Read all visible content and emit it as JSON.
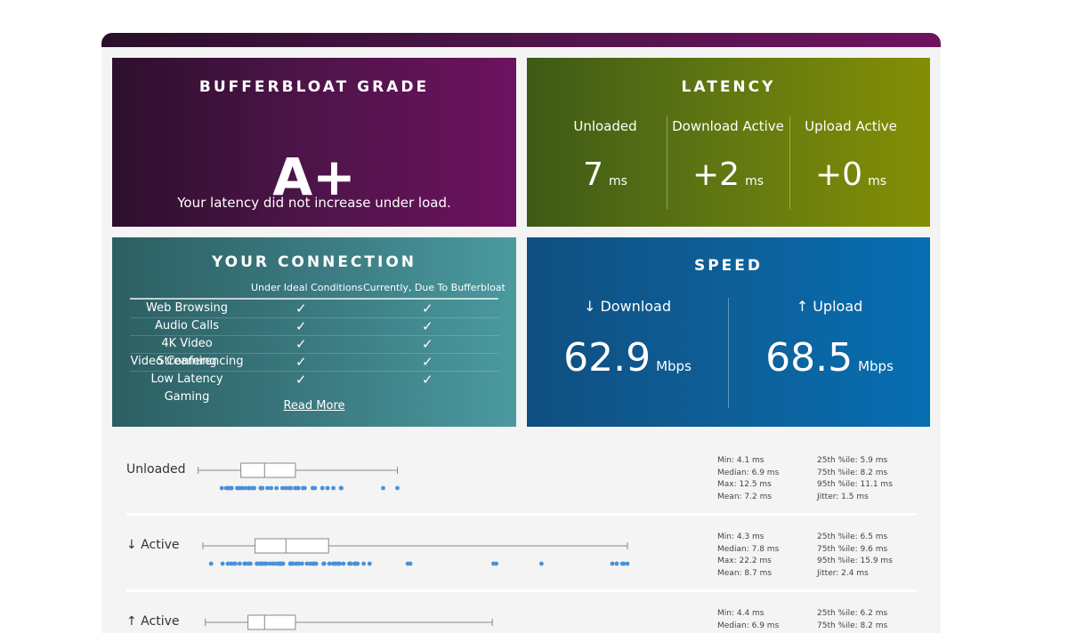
{
  "grade": {
    "title": "BUFFERBLOAT GRADE",
    "value": "A+",
    "description": "Your latency did not increase under load."
  },
  "latency": {
    "title": "LATENCY",
    "columns": [
      {
        "label": "Unloaded",
        "value": "7",
        "unit": "ms"
      },
      {
        "label": "Download Active",
        "value": "+2",
        "unit": "ms"
      },
      {
        "label": "Upload Active",
        "value": "+0",
        "unit": "ms"
      }
    ]
  },
  "connection": {
    "title": "YOUR CONNECTION",
    "headers": [
      "Under Ideal Conditions",
      "Currently, Due To Bufferbloat"
    ],
    "rows": [
      {
        "name": "Web Browsing",
        "ideal": "✓",
        "current": "✓"
      },
      {
        "name": "Audio Calls",
        "ideal": "✓",
        "current": "✓"
      },
      {
        "name": "4K Video Streaming",
        "ideal": "✓",
        "current": "✓"
      },
      {
        "name": "Video Conferencing",
        "ideal": "✓",
        "current": "✓"
      },
      {
        "name": "Low Latency Gaming",
        "ideal": "✓",
        "current": "✓"
      }
    ],
    "read_more": "Read More"
  },
  "speed": {
    "title": "SPEED",
    "download": {
      "label": "↓ Download",
      "value": "62.9",
      "unit": "Mbps"
    },
    "upload": {
      "label": "↑ Upload",
      "value": "68.5",
      "unit": "Mbps"
    }
  },
  "colors": {
    "grade_bg": "#4b1447",
    "latency_bg": "#5e7512",
    "connection_bg": "#3a7a80",
    "speed_bg": "#0e5f98",
    "dot_color": "#4a90d9"
  },
  "stats": [
    {
      "label": "Unloaded",
      "left": [
        "Min: 4.1 ms",
        "Median: 6.9 ms",
        "Max: 12.5 ms",
        "Mean: 7.2 ms"
      ],
      "right": [
        "25th %ile: 5.9 ms",
        "75th %ile: 8.2 ms",
        "95th %ile: 11.1 ms",
        "Jitter: 1.5 ms"
      ],
      "box": {
        "min": 4.1,
        "q1": 5.9,
        "median": 6.9,
        "q3": 8.2,
        "max": 12.5
      }
    },
    {
      "label": "↓ Active",
      "left": [
        "Min: 4.3 ms",
        "Median: 7.8 ms",
        "Max: 22.2 ms",
        "Mean: 8.7 ms"
      ],
      "right": [
        "25th %ile: 6.5 ms",
        "75th %ile: 9.6 ms",
        "95th %ile: 15.9 ms",
        "Jitter: 2.4 ms"
      ],
      "box": {
        "min": 4.3,
        "q1": 6.5,
        "median": 7.8,
        "q3": 9.6,
        "max": 22.2
      }
    },
    {
      "label": "↑ Active",
      "left": [
        "Min: 4.4 ms",
        "Median: 6.9 ms"
      ],
      "right": [
        "25th %ile: 6.2 ms",
        "75th %ile: 8.2 ms"
      ],
      "box": {
        "min": 4.4,
        "q1": 6.2,
        "median": 6.9,
        "q3": 8.2,
        "max": 16.5
      }
    }
  ]
}
